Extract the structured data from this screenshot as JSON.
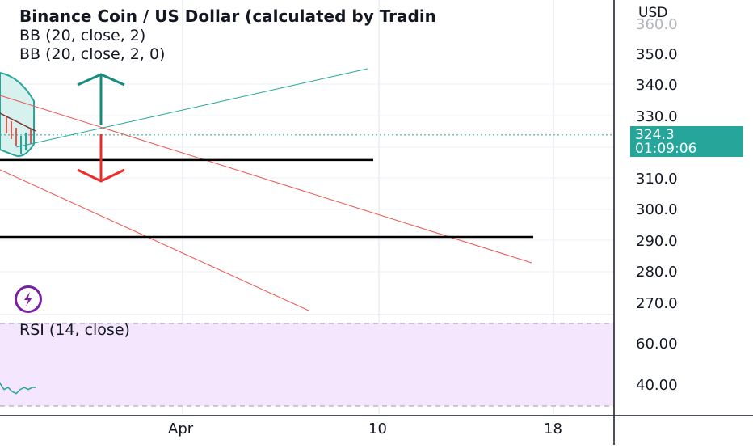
{
  "header": {
    "title": "Binance Coin / US Dollar (calculated by Tradin",
    "indicator_bb1": "BB (20, close, 2)",
    "indicator_bb2": "BB (20, close, 2, 0)"
  },
  "rsi_pane": {
    "label": "RSI (14, close)"
  },
  "price_axis": {
    "currency": "USD",
    "ticks": [
      "360.0",
      "350.0",
      "340.0",
      "330.0",
      "310.0",
      "300.0",
      "290.0",
      "280.0",
      "270.0"
    ],
    "last_price": "324.3",
    "countdown": "01:09:06"
  },
  "rsi_axis": {
    "ticks": [
      "60.00",
      "40.00"
    ]
  },
  "time_axis": {
    "ticks": [
      "Apr",
      "10",
      "18"
    ]
  },
  "icons": {
    "flash": "lightning-icon"
  },
  "colors": {
    "up_arrow": "#138c7f",
    "down_arrow": "#ef2a2a",
    "trend_up": "#26a69a",
    "trend_down": "#ef5350",
    "support": "#000000",
    "rsi_band": "#f3e6fd",
    "badge": "#26a69a"
  },
  "chart_data": {
    "type": "line",
    "title": "Binance Coin / US Dollar (calculated by Tradin",
    "price_ylim": [
      265,
      362
    ],
    "rsi_ylim": [
      30,
      70
    ],
    "support_levels": [
      316.2,
      291.4
    ],
    "last_price": 324.3,
    "overbought_oversold": [
      70,
      30
    ],
    "rsi_values": [
      41,
      38,
      39,
      37,
      36,
      38,
      39,
      38,
      39,
      39
    ],
    "x_ticks": [
      "Apr",
      "10",
      "18"
    ]
  }
}
